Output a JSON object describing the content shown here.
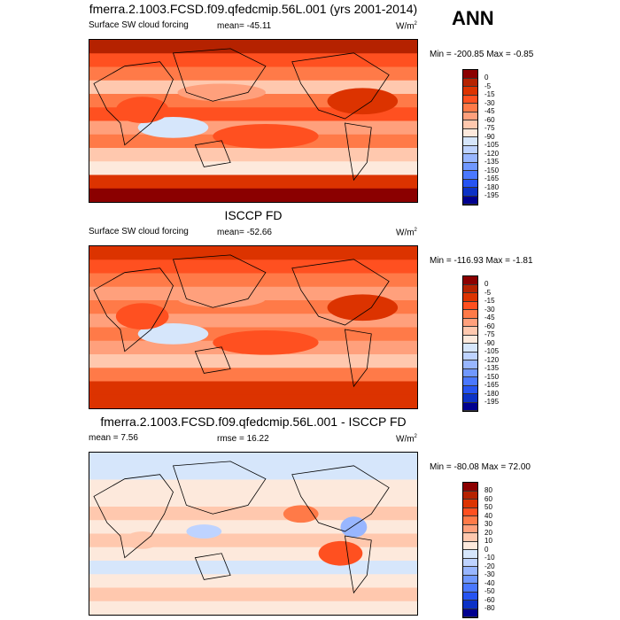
{
  "ann": "ANN",
  "panels": [
    {
      "title": "fmerra.2.1003.FCSD.f09.qfedcmip.56L.001 (yrs 2001-2014)",
      "left": "Surface SW cloud forcing",
      "stat": "mean= -45.11",
      "units": "W/m",
      "units_sup": "2",
      "minmax": "Min = -200.85 Max =  -0.85",
      "levels": [
        "0",
        "-5",
        "-15",
        "-30",
        "-45",
        "-60",
        "-75",
        "-90",
        "-105",
        "-120",
        "-135",
        "-150",
        "-165",
        "-180",
        "-195"
      ]
    },
    {
      "title": "ISCCP FD",
      "left": "Surface SW cloud forcing",
      "stat": "mean= -52.66",
      "units": "W/m",
      "units_sup": "2",
      "minmax": "Min = -116.93 Max =  -1.81",
      "levels": [
        "0",
        "-5",
        "-15",
        "-30",
        "-45",
        "-60",
        "-75",
        "-90",
        "-105",
        "-120",
        "-135",
        "-150",
        "-165",
        "-180",
        "-195"
      ]
    },
    {
      "title": "fmerra.2.1003.FCSD.f09.qfedcmip.56L.001 - ISCCP FD",
      "left": "mean =   7.56",
      "stat": "rmse =  16.22",
      "units": "W/m",
      "units_sup": "2",
      "minmax": "Min = -80.08 Max =  72.00",
      "levels": [
        "80",
        "60",
        "50",
        "40",
        "30",
        "20",
        "10",
        "0",
        "-10",
        "-20",
        "-30",
        "-40",
        "-50",
        "-60",
        "-80"
      ]
    }
  ],
  "colors": [
    "#8b0000",
    "#b52200",
    "#dc3300",
    "#ff5020",
    "#ff7a48",
    "#ffa07c",
    "#ffc8ae",
    "#fde9dc",
    "#d6e6fb",
    "#bed3ff",
    "#98b6ff",
    "#7098ff",
    "#4a78ff",
    "#2654f2",
    "#0c32c6",
    "#00008f"
  ]
}
